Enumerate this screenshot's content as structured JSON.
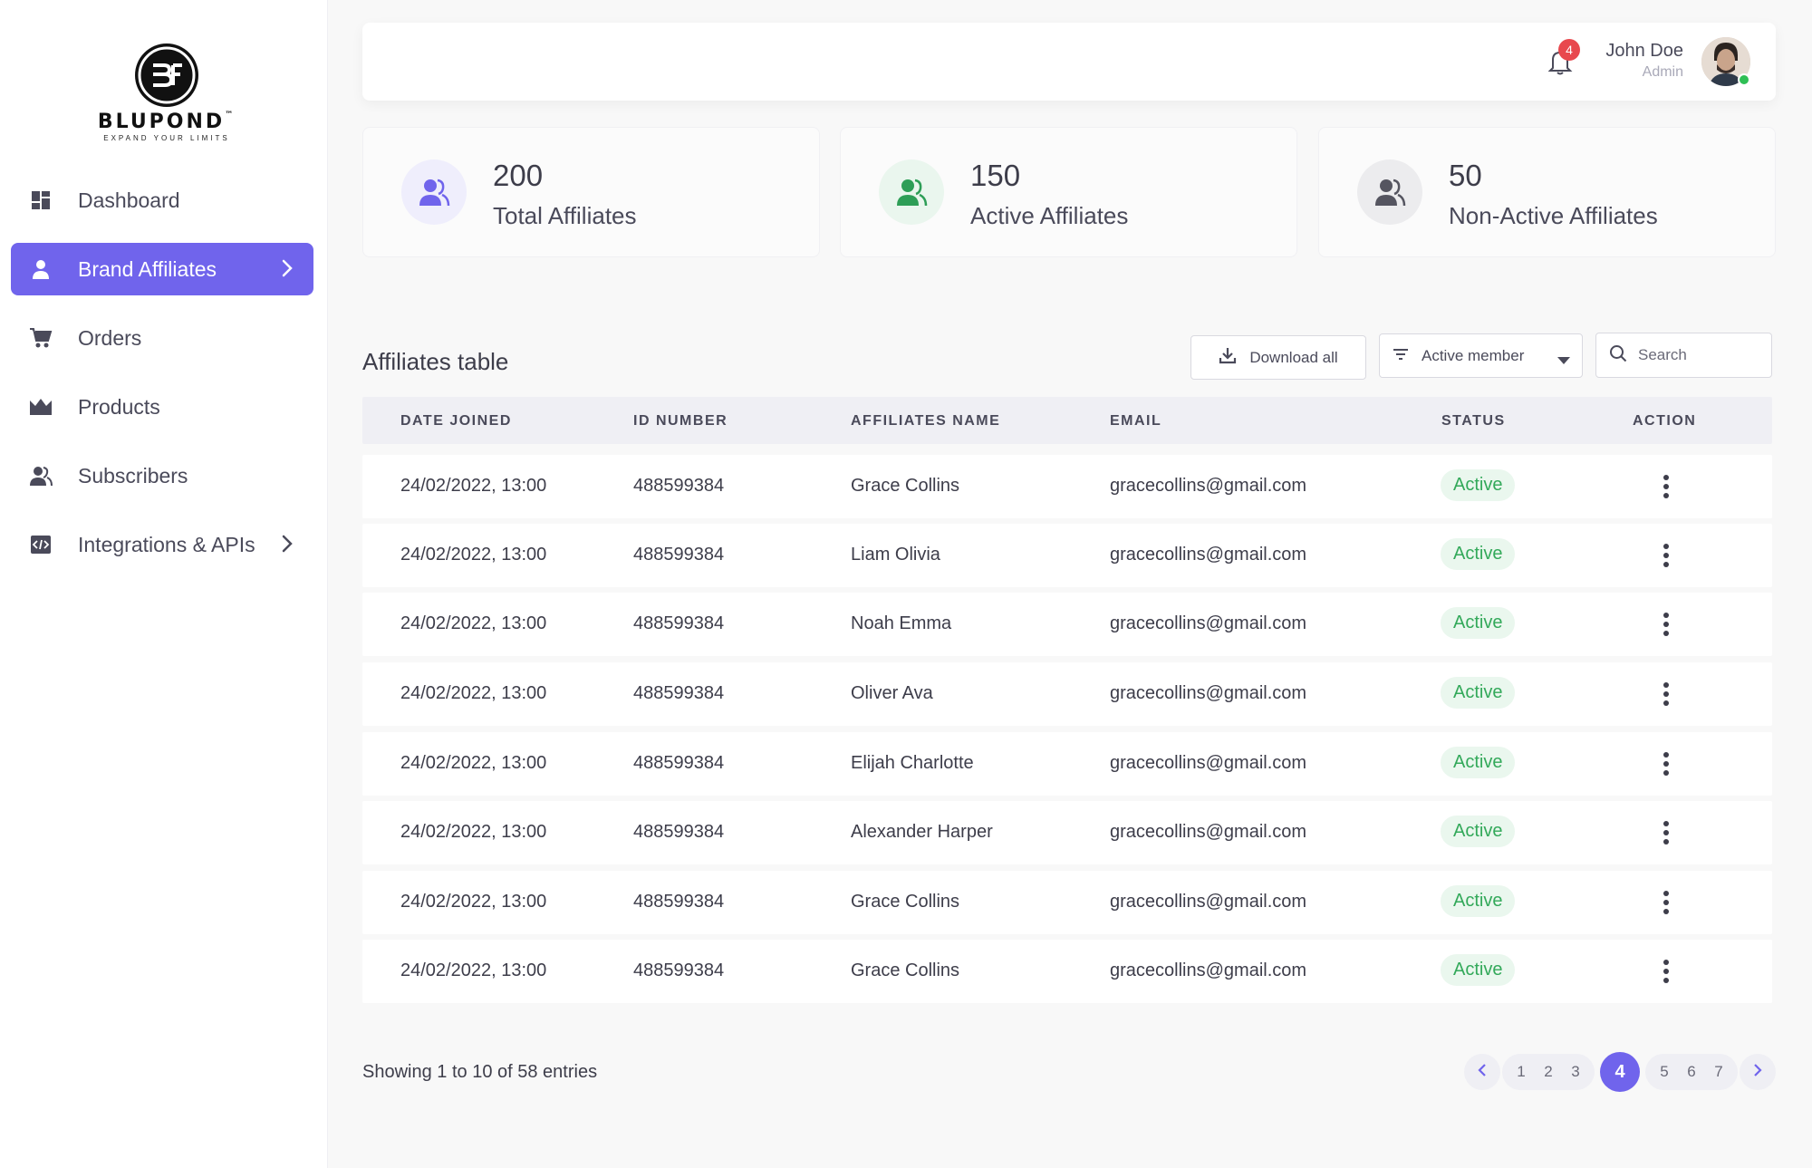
{
  "brand": {
    "name": "BLUPOND",
    "tagline": "EXPAND YOUR LIMITS",
    "tm": "™"
  },
  "sidebar": {
    "items": [
      {
        "label": "Dashboard",
        "icon": "dashboard-icon"
      },
      {
        "label": "Brand Affiliates",
        "icon": "person-icon",
        "active": true
      },
      {
        "label": "Orders",
        "icon": "cart-icon"
      },
      {
        "label": "Products",
        "icon": "crown-icon"
      },
      {
        "label": "Subscribers",
        "icon": "subscribers-icon"
      },
      {
        "label": "Integrations & APIs",
        "icon": "code-icon"
      }
    ]
  },
  "header": {
    "notifications": "4",
    "user_name": "John Doe",
    "user_role": "Admin"
  },
  "stats": [
    {
      "value": "200",
      "label": "Total Affiliates",
      "color": "#7064ec",
      "bg": "#efeefc"
    },
    {
      "value": "150",
      "label": "Active Affiliates",
      "color": "#2e9e57",
      "bg": "#eaf6ee"
    },
    {
      "value": "50",
      "label": "Non-Active Affiliates",
      "color": "#555560",
      "bg": "#ececee"
    }
  ],
  "table": {
    "title": "Affiliates table",
    "download_label": "Download all",
    "filter_value": "Active member",
    "search_placeholder": "Search",
    "columns": [
      "DATE JOINED",
      "ID NUMBER",
      "AFFILIATES NAME",
      "EMAIL",
      "STATUS",
      "ACTION"
    ],
    "rows": [
      {
        "date": "24/02/2022, 13:00",
        "id": "488599384",
        "name": "Grace Collins",
        "email": "gracecollins@gmail.com",
        "status": "Active"
      },
      {
        "date": "24/02/2022, 13:00",
        "id": "488599384",
        "name": "Liam Olivia",
        "email": "gracecollins@gmail.com",
        "status": "Active"
      },
      {
        "date": "24/02/2022, 13:00",
        "id": "488599384",
        "name": "Noah Emma",
        "email": "gracecollins@gmail.com",
        "status": "Active"
      },
      {
        "date": "24/02/2022, 13:00",
        "id": "488599384",
        "name": "Oliver Ava",
        "email": "gracecollins@gmail.com",
        "status": "Active"
      },
      {
        "date": "24/02/2022, 13:00",
        "id": "488599384",
        "name": "Elijah Charlotte",
        "email": "gracecollins@gmail.com",
        "status": "Active"
      },
      {
        "date": "24/02/2022, 13:00",
        "id": "488599384",
        "name": "Alexander Harper",
        "email": "gracecollins@gmail.com",
        "status": "Active"
      },
      {
        "date": "24/02/2022, 13:00",
        "id": "488599384",
        "name": "Grace Collins",
        "email": "gracecollins@gmail.com",
        "status": "Active"
      },
      {
        "date": "24/02/2022, 13:00",
        "id": "488599384",
        "name": "Grace Collins",
        "email": "gracecollins@gmail.com",
        "status": "Active"
      }
    ],
    "entries_text": "Showing 1 to 10 of 58 entries"
  },
  "pagination": {
    "pages_before": [
      "1",
      "2",
      "3"
    ],
    "current": "4",
    "pages_after": [
      "5",
      "6",
      "7"
    ]
  }
}
